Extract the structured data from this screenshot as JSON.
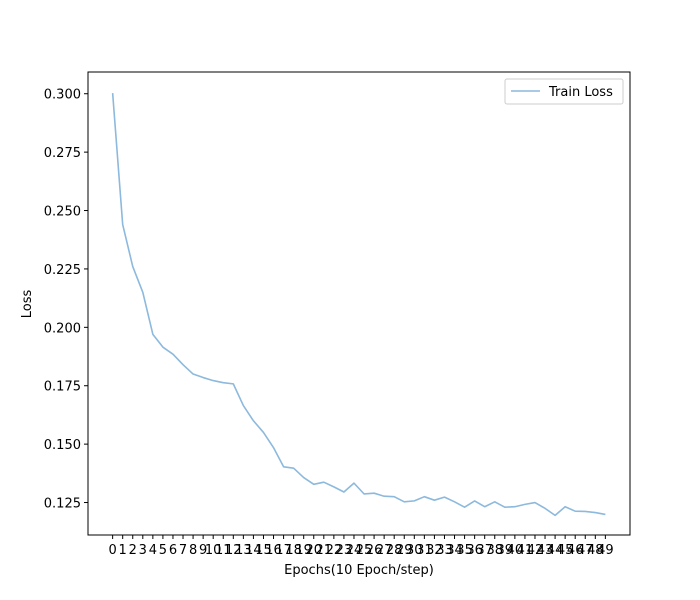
{
  "chart_data": {
    "type": "line",
    "xlabel": "Epochs(10 Epoch/step)",
    "ylabel": "Loss",
    "x": [
      0,
      1,
      2,
      3,
      4,
      5,
      6,
      7,
      8,
      9,
      10,
      11,
      12,
      13,
      14,
      15,
      16,
      17,
      18,
      19,
      20,
      21,
      22,
      23,
      24,
      25,
      26,
      27,
      28,
      29,
      30,
      31,
      32,
      33,
      34,
      35,
      36,
      37,
      38,
      39,
      40,
      41,
      42,
      43,
      44,
      45,
      46,
      47,
      48,
      49
    ],
    "x_tick_labels": [
      "0",
      "1",
      "2",
      "3",
      "4",
      "5",
      "6",
      "7",
      "8",
      "9",
      "10",
      "11",
      "12",
      "13",
      "14",
      "15",
      "16",
      "17",
      "18",
      "19",
      "20",
      "21",
      "22",
      "23",
      "24",
      "25",
      "26",
      "27",
      "28",
      "29",
      "30",
      "31",
      "32",
      "33",
      "34",
      "35",
      "36",
      "37",
      "38",
      "39",
      "40",
      "41",
      "42",
      "43",
      "44",
      "45",
      "46",
      "47",
      "48",
      "49"
    ],
    "y_ticks": [
      0.125,
      0.15,
      0.175,
      0.2,
      0.225,
      0.25,
      0.275,
      0.3
    ],
    "y_tick_labels": [
      "0.125",
      "0.150",
      "0.175",
      "0.200",
      "0.225",
      "0.250",
      "0.275",
      "0.300"
    ],
    "ylim": [
      0.1111,
      0.3093
    ],
    "xlim": [
      -2.45,
      51.45
    ],
    "grid": false,
    "legend_position": "top-right",
    "series": [
      {
        "name": "Train Loss",
        "color": "#8cb9dd",
        "values": [
          0.3003,
          0.244,
          0.226,
          0.215,
          0.197,
          0.1915,
          0.1885,
          0.184,
          0.18,
          0.1785,
          0.1772,
          0.1763,
          0.1758,
          0.1665,
          0.16,
          0.155,
          0.1485,
          0.1403,
          0.1397,
          0.1357,
          0.1328,
          0.1337,
          0.1317,
          0.1295,
          0.1333,
          0.1287,
          0.129,
          0.1277,
          0.1275,
          0.1253,
          0.1257,
          0.1275,
          0.126,
          0.1273,
          0.1253,
          0.123,
          0.1257,
          0.1232,
          0.1253,
          0.123,
          0.1232,
          0.1242,
          0.125,
          0.1225,
          0.1195,
          0.1232,
          0.1213,
          0.1212,
          0.1207,
          0.1199
        ]
      }
    ]
  }
}
